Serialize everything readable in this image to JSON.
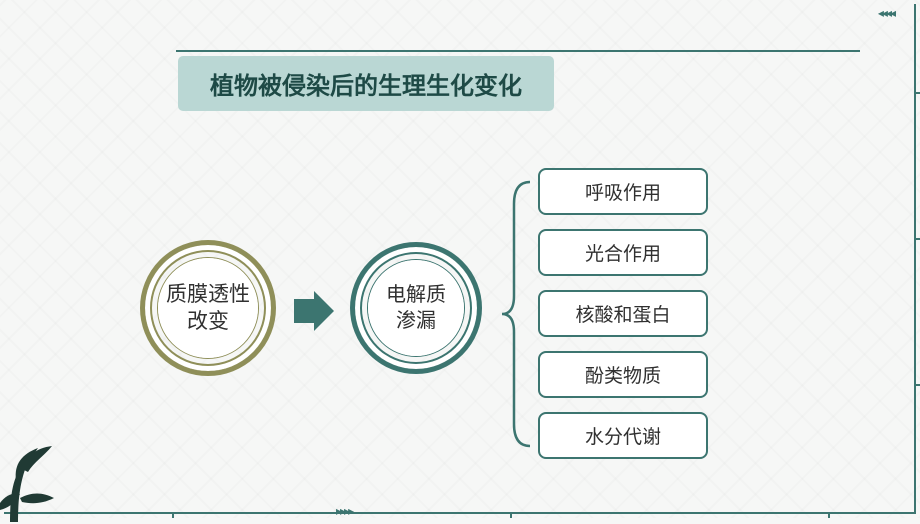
{
  "colors": {
    "frame": "#3c7570",
    "rule": "#3c7570",
    "titlebg": "#bad7d4",
    "titlefg": "#1e4a46",
    "olive": "#8f8f59",
    "teal": "#3c7570",
    "nodefg": "#303030"
  },
  "title": {
    "text": "植物被侵染后的生理生化变化",
    "fontsize": 24
  },
  "node1": {
    "line1": "质膜透性",
    "line2": "改变",
    "fontsize": 21
  },
  "node2": {
    "line1": "电解质",
    "line2": "渗漏",
    "fontsize": 20
  },
  "items_fontsize": 19,
  "items": [
    {
      "label": "呼吸作用"
    },
    {
      "label": "光合作用"
    },
    {
      "label": "核酸和蛋白"
    },
    {
      "label": "酚类物质"
    },
    {
      "label": "水分代谢"
    }
  ]
}
